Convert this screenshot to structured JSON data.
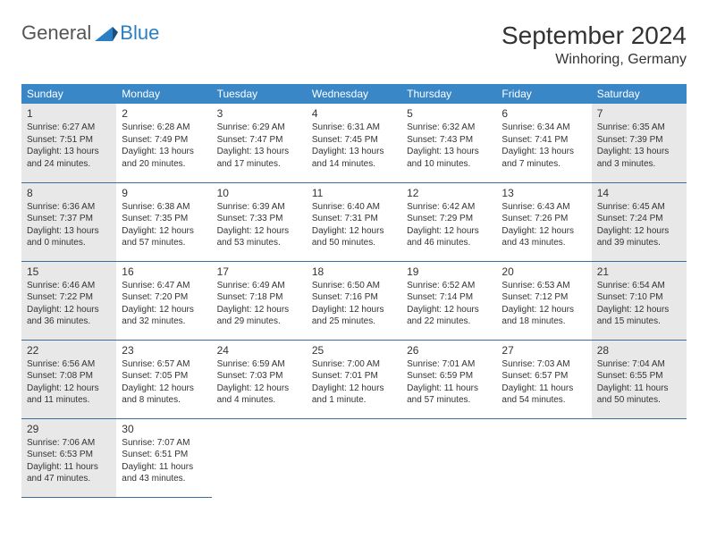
{
  "logo": {
    "text_general": "General",
    "text_blue": "Blue",
    "mark_color": "#2a7ec4"
  },
  "title": "September 2024",
  "location": "Winhoring, Germany",
  "colors": {
    "header_bg": "#3a87c8",
    "header_text": "#ffffff",
    "row_border": "#3a6d9c",
    "shaded_bg": "#e8e8e8",
    "body_text": "#333333"
  },
  "day_headers": [
    "Sunday",
    "Monday",
    "Tuesday",
    "Wednesday",
    "Thursday",
    "Friday",
    "Saturday"
  ],
  "weeks": [
    [
      {
        "n": "1",
        "shaded": true,
        "sunrise": "6:27 AM",
        "sunset": "7:51 PM",
        "dl": "13 hours and 24 minutes."
      },
      {
        "n": "2",
        "sunrise": "6:28 AM",
        "sunset": "7:49 PM",
        "dl": "13 hours and 20 minutes."
      },
      {
        "n": "3",
        "sunrise": "6:29 AM",
        "sunset": "7:47 PM",
        "dl": "13 hours and 17 minutes."
      },
      {
        "n": "4",
        "sunrise": "6:31 AM",
        "sunset": "7:45 PM",
        "dl": "13 hours and 14 minutes."
      },
      {
        "n": "5",
        "sunrise": "6:32 AM",
        "sunset": "7:43 PM",
        "dl": "13 hours and 10 minutes."
      },
      {
        "n": "6",
        "sunrise": "6:34 AM",
        "sunset": "7:41 PM",
        "dl": "13 hours and 7 minutes."
      },
      {
        "n": "7",
        "shaded": true,
        "sunrise": "6:35 AM",
        "sunset": "7:39 PM",
        "dl": "13 hours and 3 minutes."
      }
    ],
    [
      {
        "n": "8",
        "shaded": true,
        "sunrise": "6:36 AM",
        "sunset": "7:37 PM",
        "dl": "13 hours and 0 minutes."
      },
      {
        "n": "9",
        "sunrise": "6:38 AM",
        "sunset": "7:35 PM",
        "dl": "12 hours and 57 minutes."
      },
      {
        "n": "10",
        "sunrise": "6:39 AM",
        "sunset": "7:33 PM",
        "dl": "12 hours and 53 minutes."
      },
      {
        "n": "11",
        "sunrise": "6:40 AM",
        "sunset": "7:31 PM",
        "dl": "12 hours and 50 minutes."
      },
      {
        "n": "12",
        "sunrise": "6:42 AM",
        "sunset": "7:29 PM",
        "dl": "12 hours and 46 minutes."
      },
      {
        "n": "13",
        "sunrise": "6:43 AM",
        "sunset": "7:26 PM",
        "dl": "12 hours and 43 minutes."
      },
      {
        "n": "14",
        "shaded": true,
        "sunrise": "6:45 AM",
        "sunset": "7:24 PM",
        "dl": "12 hours and 39 minutes."
      }
    ],
    [
      {
        "n": "15",
        "shaded": true,
        "sunrise": "6:46 AM",
        "sunset": "7:22 PM",
        "dl": "12 hours and 36 minutes."
      },
      {
        "n": "16",
        "sunrise": "6:47 AM",
        "sunset": "7:20 PM",
        "dl": "12 hours and 32 minutes."
      },
      {
        "n": "17",
        "sunrise": "6:49 AM",
        "sunset": "7:18 PM",
        "dl": "12 hours and 29 minutes."
      },
      {
        "n": "18",
        "sunrise": "6:50 AM",
        "sunset": "7:16 PM",
        "dl": "12 hours and 25 minutes."
      },
      {
        "n": "19",
        "sunrise": "6:52 AM",
        "sunset": "7:14 PM",
        "dl": "12 hours and 22 minutes."
      },
      {
        "n": "20",
        "sunrise": "6:53 AM",
        "sunset": "7:12 PM",
        "dl": "12 hours and 18 minutes."
      },
      {
        "n": "21",
        "shaded": true,
        "sunrise": "6:54 AM",
        "sunset": "7:10 PM",
        "dl": "12 hours and 15 minutes."
      }
    ],
    [
      {
        "n": "22",
        "shaded": true,
        "sunrise": "6:56 AM",
        "sunset": "7:08 PM",
        "dl": "12 hours and 11 minutes."
      },
      {
        "n": "23",
        "sunrise": "6:57 AM",
        "sunset": "7:05 PM",
        "dl": "12 hours and 8 minutes."
      },
      {
        "n": "24",
        "sunrise": "6:59 AM",
        "sunset": "7:03 PM",
        "dl": "12 hours and 4 minutes."
      },
      {
        "n": "25",
        "sunrise": "7:00 AM",
        "sunset": "7:01 PM",
        "dl": "12 hours and 1 minute."
      },
      {
        "n": "26",
        "sunrise": "7:01 AM",
        "sunset": "6:59 PM",
        "dl": "11 hours and 57 minutes."
      },
      {
        "n": "27",
        "sunrise": "7:03 AM",
        "sunset": "6:57 PM",
        "dl": "11 hours and 54 minutes."
      },
      {
        "n": "28",
        "shaded": true,
        "sunrise": "7:04 AM",
        "sunset": "6:55 PM",
        "dl": "11 hours and 50 minutes."
      }
    ],
    [
      {
        "n": "29",
        "shaded": true,
        "sunrise": "7:06 AM",
        "sunset": "6:53 PM",
        "dl": "11 hours and 47 minutes."
      },
      {
        "n": "30",
        "sunrise": "7:07 AM",
        "sunset": "6:51 PM",
        "dl": "11 hours and 43 minutes."
      },
      {
        "empty": true
      },
      {
        "empty": true
      },
      {
        "empty": true
      },
      {
        "empty": true
      },
      {
        "empty": true
      }
    ]
  ],
  "labels": {
    "sunrise": "Sunrise:",
    "sunset": "Sunset:",
    "daylight": "Daylight:"
  }
}
